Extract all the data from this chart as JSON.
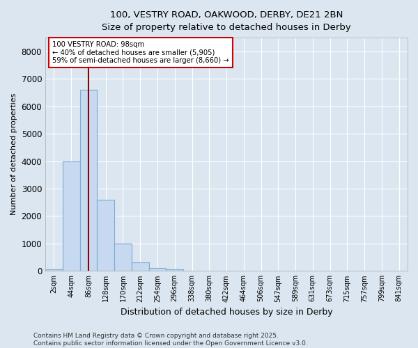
{
  "title_line1": "100, VESTRY ROAD, OAKWOOD, DERBY, DE21 2BN",
  "title_line2": "Size of property relative to detached houses in Derby",
  "xlabel": "Distribution of detached houses by size in Derby",
  "ylabel": "Number of detached properties",
  "bar_categories": [
    "2sqm",
    "44sqm",
    "86sqm",
    "128sqm",
    "170sqm",
    "212sqm",
    "254sqm",
    "296sqm",
    "338sqm",
    "380sqm",
    "422sqm",
    "464sqm",
    "506sqm",
    "547sqm",
    "589sqm",
    "631sqm",
    "673sqm",
    "715sqm",
    "757sqm",
    "799sqm",
    "841sqm"
  ],
  "bar_values": [
    50,
    4000,
    6600,
    2600,
    1000,
    300,
    120,
    60,
    0,
    0,
    0,
    0,
    0,
    0,
    0,
    0,
    0,
    0,
    0,
    0,
    0
  ],
  "bar_color": "#c6d9f0",
  "bar_edge_color": "#7aacce",
  "background_color": "#dce6f0",
  "plot_bg_color": "#dce6f0",
  "grid_color": "#ffffff",
  "vline_x_index": 2.0,
  "vline_color": "#8b0000",
  "annotation_text_line1": "100 VESTRY ROAD: 98sqm",
  "annotation_text_line2": "← 40% of detached houses are smaller (5,905)",
  "annotation_text_line3": "59% of semi-detached houses are larger (8,660) →",
  "annotation_box_color": "#ffffff",
  "annotation_box_edge": "#cc0000",
  "ylim": [
    0,
    8500
  ],
  "yticks": [
    0,
    1000,
    2000,
    3000,
    4000,
    5000,
    6000,
    7000,
    8000
  ],
  "footer_line1": "Contains HM Land Registry data © Crown copyright and database right 2025.",
  "footer_line2": "Contains public sector information licensed under the Open Government Licence v3.0."
}
